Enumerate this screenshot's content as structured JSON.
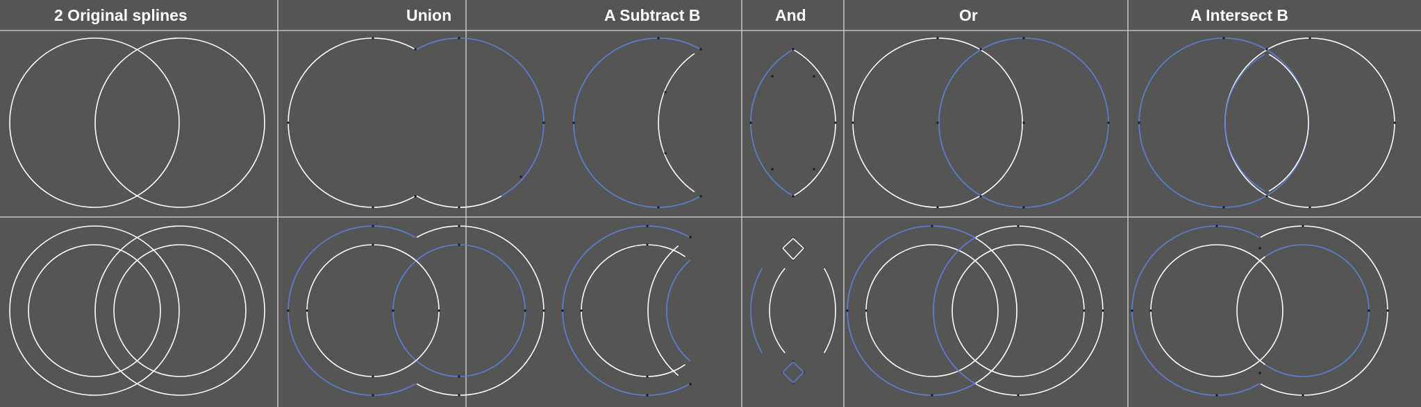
{
  "headers": {
    "original": "2 Original splines",
    "union": "Union",
    "subtract": "A Subtract B",
    "and": "And",
    "or": "Or",
    "intersect": "A Intersect B"
  },
  "colors": {
    "background": "#555555",
    "grid_line": "#d8d8d8",
    "spline_white": "#ffffff",
    "spline_blue": "#5b7fd6",
    "point": "#1b1b1b"
  },
  "cells": [
    {
      "name": "cell-original-row1",
      "shape": "original-circles"
    },
    {
      "name": "cell-union-row1",
      "shape": "union-circles"
    },
    {
      "name": "cell-subtract-row1",
      "shape": "subtract-crescent"
    },
    {
      "name": "cell-and-row1",
      "shape": "and-lens"
    },
    {
      "name": "cell-or-row1",
      "shape": "or-circles"
    },
    {
      "name": "cell-intersect-row1",
      "shape": "intersect-circles"
    },
    {
      "name": "cell-original-row2",
      "shape": "original-rings"
    },
    {
      "name": "cell-union-row2",
      "shape": "union-rings"
    },
    {
      "name": "cell-subtract-row2",
      "shape": "subtract-rings"
    },
    {
      "name": "cell-and-row2",
      "shape": "and-diamonds"
    },
    {
      "name": "cell-or-row2",
      "shape": "or-rings"
    },
    {
      "name": "cell-intersect-row2",
      "shape": "intersect-rings"
    }
  ]
}
